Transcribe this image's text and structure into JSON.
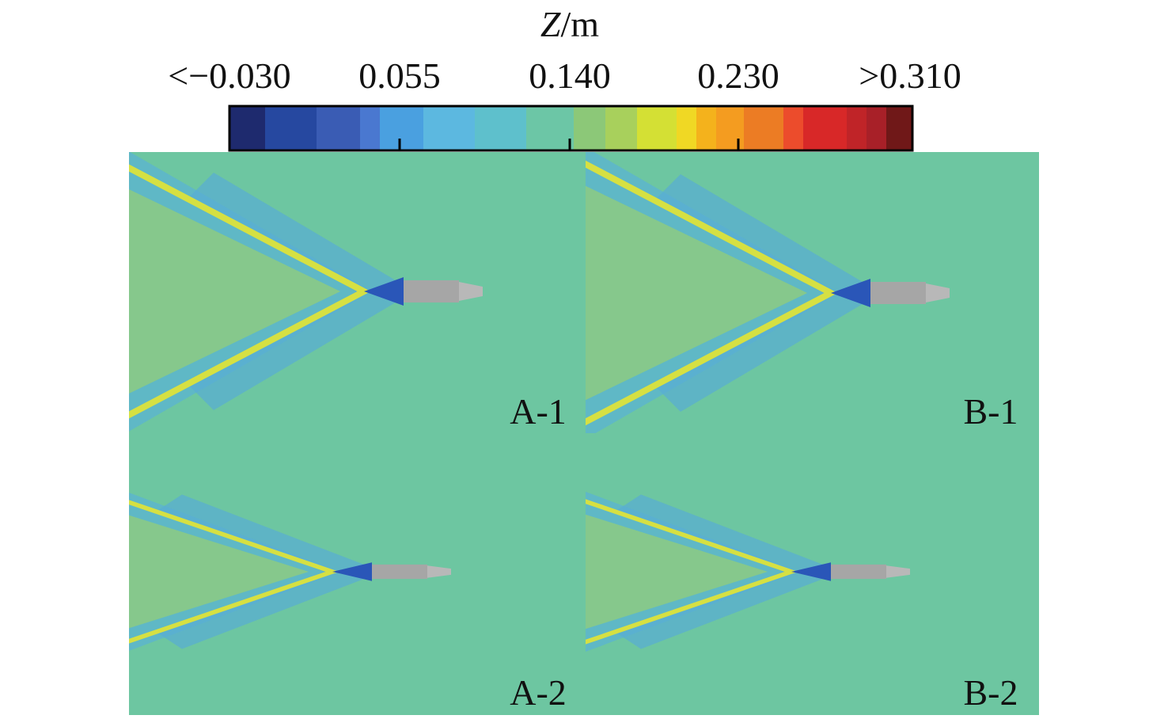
{
  "colorbar": {
    "variable": "Z",
    "unit": "/m",
    "ticks": [
      "<−0.030",
      "0.055",
      "0.140",
      "0.230",
      ">0.310"
    ]
  },
  "panels": [
    "A-1",
    "B-1",
    "A-2",
    "B-2"
  ]
}
